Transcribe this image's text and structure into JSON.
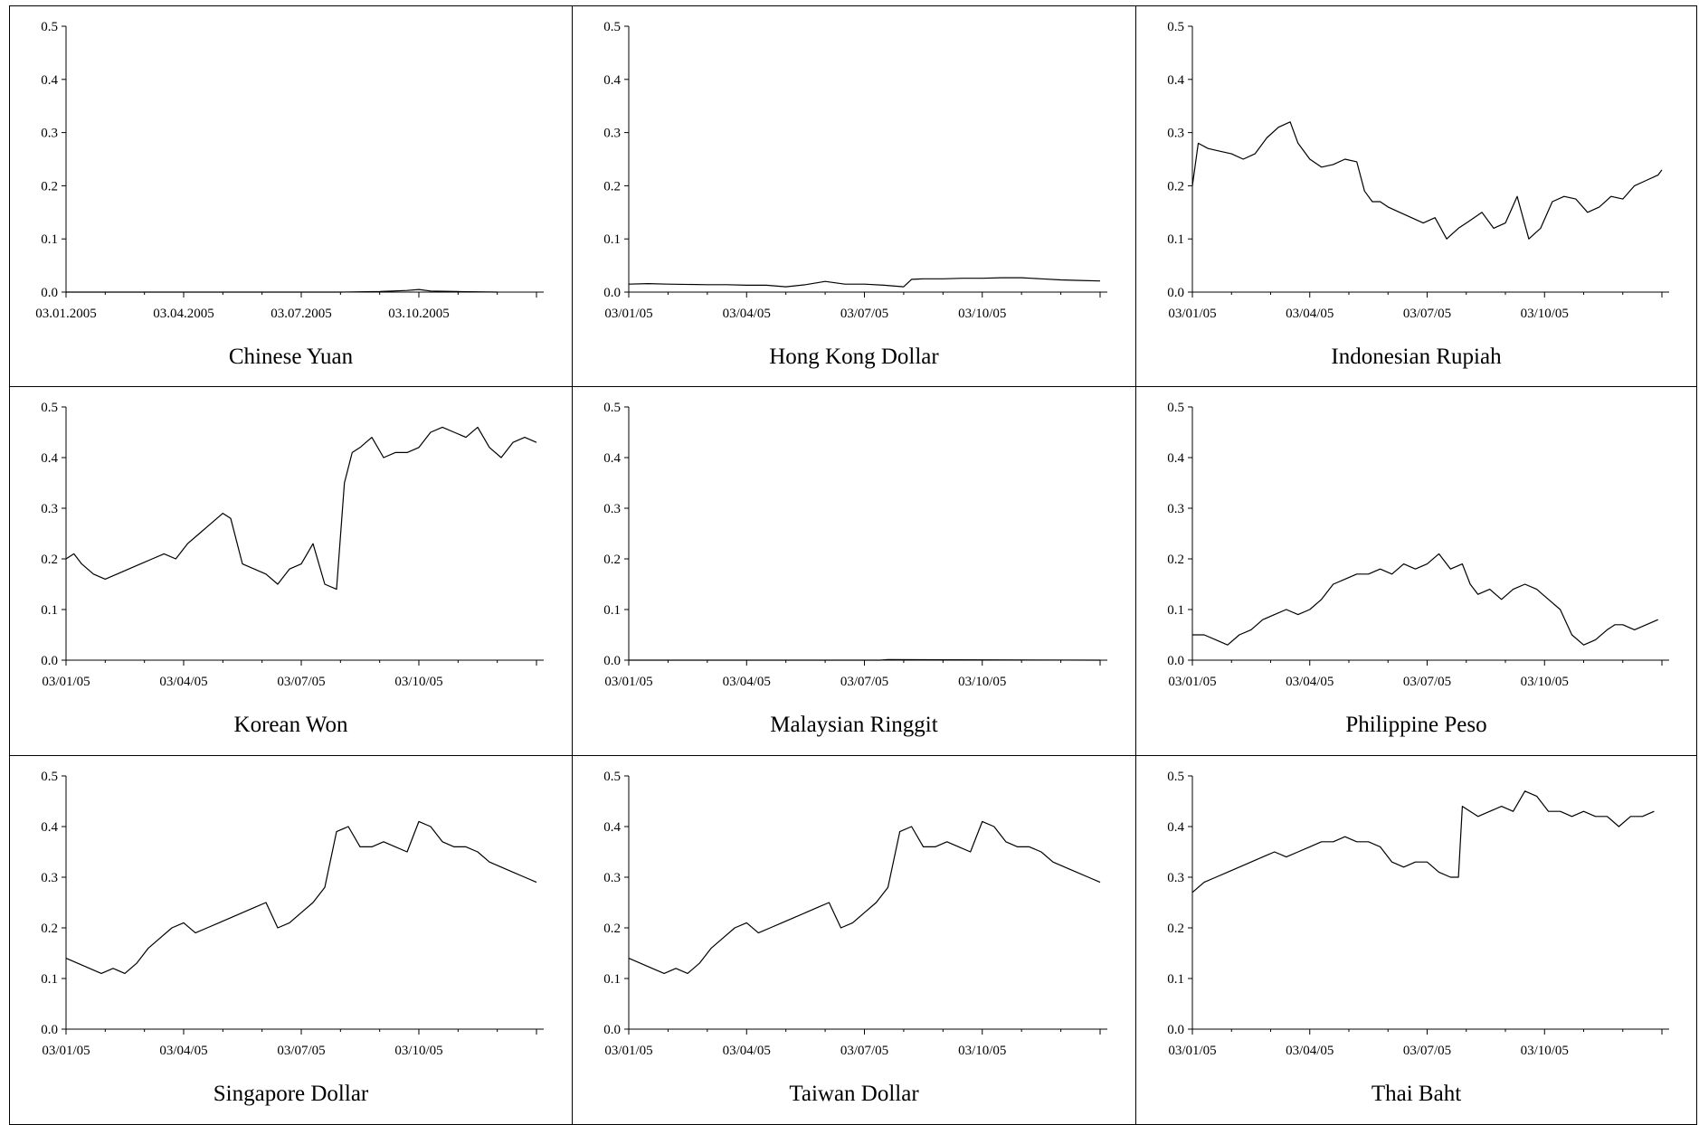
{
  "header": {
    "caption_fragment": ""
  },
  "chart_data": [
    {
      "type": "line",
      "title": "Chinese Yuan",
      "ylim": [
        0,
        0.5
      ],
      "yticks": [
        "0.0",
        "0.1",
        "0.2",
        "0.3",
        "0.4",
        "0.5"
      ],
      "xticks": [
        "03.01.2005",
        "03.04.2005",
        "03.07.2005",
        "03.10.2005"
      ],
      "xdomain": [
        0,
        12
      ],
      "series": [
        {
          "x": [
            0,
            1,
            2,
            3,
            4,
            5,
            6,
            7,
            8,
            8.7,
            9.0,
            9.3,
            10,
            11
          ],
          "y": [
            0,
            0,
            0,
            0,
            0,
            0,
            0,
            0,
            0.001,
            0.003,
            0.005,
            0.002,
            0.001,
            0
          ]
        }
      ]
    },
    {
      "type": "line",
      "title": "Hong Kong Dollar",
      "ylim": [
        0,
        0.5
      ],
      "yticks": [
        "0.0",
        "0.1",
        "0.2",
        "0.3",
        "0.4",
        "0.5"
      ],
      "xticks": [
        "03/01/05",
        "03/04/05",
        "03/07/05",
        "03/10/05"
      ],
      "xdomain": [
        0,
        12
      ],
      "series": [
        {
          "x": [
            0,
            0.5,
            1,
            2,
            2.5,
            3,
            3.5,
            4,
            4.5,
            5,
            5.5,
            6,
            6.5,
            7,
            7.2,
            7.5,
            8,
            8.5,
            9,
            9.5,
            10,
            10.5,
            11,
            11.5,
            12
          ],
          "y": [
            0.015,
            0.016,
            0.015,
            0.014,
            0.014,
            0.013,
            0.013,
            0.01,
            0.014,
            0.02,
            0.015,
            0.015,
            0.013,
            0.01,
            0.024,
            0.025,
            0.025,
            0.026,
            0.026,
            0.027,
            0.027,
            0.025,
            0.023,
            0.022,
            0.021
          ]
        }
      ]
    },
    {
      "type": "line",
      "title": "Indonesian Rupiah",
      "ylim": [
        0,
        0.5
      ],
      "yticks": [
        "0.0",
        "0.1",
        "0.2",
        "0.3",
        "0.4",
        "0.5"
      ],
      "xticks": [
        "03/01/05",
        "03/04/05",
        "03/07/05",
        "03/10/05"
      ],
      "xdomain": [
        0,
        12
      ],
      "series": [
        {
          "x": [
            0,
            0.15,
            0.4,
            0.7,
            1.0,
            1.3,
            1.6,
            1.9,
            2.2,
            2.5,
            2.7,
            3.0,
            3.3,
            3.6,
            3.9,
            4.2,
            4.4,
            4.6,
            4.8,
            5.0,
            5.3,
            5.6,
            5.9,
            6.2,
            6.5,
            6.8,
            7.0,
            7.2,
            7.4,
            7.7,
            8.0,
            8.3,
            8.6,
            8.9,
            9.2,
            9.5,
            9.8,
            10.1,
            10.4,
            10.7,
            11.0,
            11.3,
            11.6,
            11.9,
            12.0
          ],
          "y": [
            0.2,
            0.28,
            0.27,
            0.265,
            0.26,
            0.25,
            0.26,
            0.29,
            0.31,
            0.32,
            0.28,
            0.25,
            0.235,
            0.24,
            0.25,
            0.245,
            0.19,
            0.17,
            0.17,
            0.16,
            0.15,
            0.14,
            0.13,
            0.14,
            0.1,
            0.12,
            0.13,
            0.14,
            0.15,
            0.12,
            0.13,
            0.18,
            0.1,
            0.12,
            0.17,
            0.18,
            0.175,
            0.15,
            0.16,
            0.18,
            0.175,
            0.2,
            0.21,
            0.22,
            0.23
          ]
        }
      ]
    },
    {
      "type": "line",
      "title": "Korean Won",
      "ylim": [
        0,
        0.5
      ],
      "yticks": [
        "0.0",
        "0.1",
        "0.2",
        "0.3",
        "0.4",
        "0.5"
      ],
      "xticks": [
        "03/01/05",
        "03/04/05",
        "03/07/05",
        "03/10/05"
      ],
      "xdomain": [
        0,
        12
      ],
      "series": [
        {
          "x": [
            0,
            0.2,
            0.4,
            0.7,
            1.0,
            1.3,
            1.6,
            1.9,
            2.2,
            2.5,
            2.8,
            3.1,
            3.4,
            3.7,
            4.0,
            4.2,
            4.5,
            4.8,
            5.1,
            5.4,
            5.7,
            6.0,
            6.3,
            6.6,
            6.9,
            7.1,
            7.3,
            7.5,
            7.8,
            8.1,
            8.4,
            8.7,
            9.0,
            9.3,
            9.6,
            9.9,
            10.2,
            10.5,
            10.8,
            11.1,
            11.4,
            11.7,
            12.0
          ],
          "y": [
            0.2,
            0.21,
            0.19,
            0.17,
            0.16,
            0.17,
            0.18,
            0.19,
            0.2,
            0.21,
            0.2,
            0.23,
            0.25,
            0.27,
            0.29,
            0.28,
            0.19,
            0.18,
            0.17,
            0.15,
            0.18,
            0.19,
            0.23,
            0.15,
            0.14,
            0.35,
            0.41,
            0.42,
            0.44,
            0.4,
            0.41,
            0.41,
            0.42,
            0.45,
            0.46,
            0.45,
            0.44,
            0.46,
            0.42,
            0.4,
            0.43,
            0.44,
            0.43
          ]
        }
      ]
    },
    {
      "type": "line",
      "title": "Malaysian Ringgit",
      "ylim": [
        0,
        0.5
      ],
      "yticks": [
        "0.0",
        "0.1",
        "0.2",
        "0.3",
        "0.4",
        "0.5"
      ],
      "xticks": [
        "03/01/05",
        "03/04/05",
        "03/07/05",
        "03/10/05"
      ],
      "xdomain": [
        0,
        12
      ],
      "series": [
        {
          "x": [
            0,
            6.4,
            6.6,
            12
          ],
          "y": [
            0,
            0,
            0.001,
            0
          ]
        }
      ]
    },
    {
      "type": "line",
      "title": "Philippine Peso",
      "ylim": [
        0,
        0.5
      ],
      "yticks": [
        "0.0",
        "0.1",
        "0.2",
        "0.3",
        "0.4",
        "0.5"
      ],
      "xticks": [
        "03/01/05",
        "03/04/05",
        "03/07/05",
        "03/10/05"
      ],
      "xdomain": [
        0,
        12
      ],
      "series": [
        {
          "x": [
            0,
            0.3,
            0.6,
            0.9,
            1.2,
            1.5,
            1.8,
            2.1,
            2.4,
            2.7,
            3.0,
            3.3,
            3.6,
            3.9,
            4.2,
            4.5,
            4.8,
            5.1,
            5.4,
            5.7,
            6.0,
            6.3,
            6.6,
            6.9,
            7.1,
            7.3,
            7.6,
            7.9,
            8.2,
            8.5,
            8.8,
            9.1,
            9.4,
            9.7,
            10.0,
            10.3,
            10.6,
            10.8,
            11.0,
            11.3,
            11.6,
            11.9
          ],
          "y": [
            0.05,
            0.05,
            0.04,
            0.03,
            0.05,
            0.06,
            0.08,
            0.09,
            0.1,
            0.09,
            0.1,
            0.12,
            0.15,
            0.16,
            0.17,
            0.17,
            0.18,
            0.17,
            0.19,
            0.18,
            0.19,
            0.21,
            0.18,
            0.19,
            0.15,
            0.13,
            0.14,
            0.12,
            0.14,
            0.15,
            0.14,
            0.12,
            0.1,
            0.05,
            0.03,
            0.04,
            0.06,
            0.07,
            0.07,
            0.06,
            0.07,
            0.08
          ]
        }
      ]
    },
    {
      "type": "line",
      "title": "Singapore Dollar",
      "ylim": [
        0,
        0.5
      ],
      "yticks": [
        "0.0",
        "0.1",
        "0.2",
        "0.3",
        "0.4",
        "0.5"
      ],
      "xticks": [
        "03/01/05",
        "03/04/05",
        "03/07/05",
        "03/10/05"
      ],
      "xdomain": [
        0,
        12
      ],
      "series": [
        {
          "x": [
            0,
            0.3,
            0.6,
            0.9,
            1.2,
            1.5,
            1.8,
            2.1,
            2.4,
            2.7,
            3.0,
            3.3,
            3.6,
            3.9,
            4.2,
            4.5,
            4.8,
            5.1,
            5.4,
            5.7,
            6.0,
            6.3,
            6.6,
            6.9,
            7.2,
            7.5,
            7.8,
            8.1,
            8.4,
            8.7,
            9.0,
            9.3,
            9.6,
            9.9,
            10.2,
            10.5,
            10.8,
            11.1,
            11.4,
            11.7,
            12.0
          ],
          "y": [
            0.14,
            0.13,
            0.12,
            0.11,
            0.12,
            0.11,
            0.13,
            0.16,
            0.18,
            0.2,
            0.21,
            0.19,
            0.2,
            0.21,
            0.22,
            0.23,
            0.24,
            0.25,
            0.2,
            0.21,
            0.23,
            0.25,
            0.28,
            0.39,
            0.4,
            0.36,
            0.36,
            0.37,
            0.36,
            0.35,
            0.41,
            0.4,
            0.37,
            0.36,
            0.36,
            0.35,
            0.33,
            0.32,
            0.31,
            0.3,
            0.29
          ]
        }
      ]
    },
    {
      "type": "line",
      "title": "Taiwan Dollar",
      "ylim": [
        0,
        0.5
      ],
      "yticks": [
        "0.0",
        "0.1",
        "0.2",
        "0.3",
        "0.4",
        "0.5"
      ],
      "xticks": [
        "03/01/05",
        "03/04/05",
        "03/07/05",
        "03/10/05"
      ],
      "xdomain": [
        0,
        12
      ],
      "series": [
        {
          "x": [
            0,
            0.3,
            0.6,
            0.9,
            1.2,
            1.5,
            1.8,
            2.1,
            2.4,
            2.7,
            3.0,
            3.3,
            3.6,
            3.9,
            4.2,
            4.5,
            4.8,
            5.1,
            5.4,
            5.7,
            6.0,
            6.3,
            6.6,
            6.9,
            7.2,
            7.5,
            7.8,
            8.1,
            8.4,
            8.7,
            9.0,
            9.3,
            9.6,
            9.9,
            10.2,
            10.5,
            10.8,
            11.1,
            11.4,
            11.7,
            12.0
          ],
          "y": [
            0.14,
            0.13,
            0.12,
            0.11,
            0.12,
            0.11,
            0.13,
            0.16,
            0.18,
            0.2,
            0.21,
            0.19,
            0.2,
            0.21,
            0.22,
            0.23,
            0.24,
            0.25,
            0.2,
            0.21,
            0.23,
            0.25,
            0.28,
            0.39,
            0.4,
            0.36,
            0.36,
            0.37,
            0.36,
            0.35,
            0.41,
            0.4,
            0.37,
            0.36,
            0.36,
            0.35,
            0.33,
            0.32,
            0.31,
            0.3,
            0.29
          ]
        }
      ]
    },
    {
      "type": "line",
      "title": "Thai Baht",
      "ylim": [
        0,
        0.5
      ],
      "yticks": [
        "0.0",
        "0.1",
        "0.2",
        "0.3",
        "0.4",
        "0.5"
      ],
      "xticks": [
        "03/01/05",
        "03/04/05",
        "03/07/05",
        "03/10/05"
      ],
      "xdomain": [
        0,
        12
      ],
      "series": [
        {
          "x": [
            0,
            0.3,
            0.6,
            0.9,
            1.2,
            1.5,
            1.8,
            2.1,
            2.4,
            2.7,
            3.0,
            3.3,
            3.6,
            3.9,
            4.2,
            4.5,
            4.8,
            5.1,
            5.4,
            5.7,
            6.0,
            6.3,
            6.6,
            6.8,
            6.9,
            7.1,
            7.3,
            7.6,
            7.9,
            8.2,
            8.5,
            8.8,
            9.1,
            9.4,
            9.7,
            10.0,
            10.3,
            10.6,
            10.9,
            11.2,
            11.5,
            11.8
          ],
          "y": [
            0.27,
            0.29,
            0.3,
            0.31,
            0.32,
            0.33,
            0.34,
            0.35,
            0.34,
            0.35,
            0.36,
            0.37,
            0.37,
            0.38,
            0.37,
            0.37,
            0.36,
            0.33,
            0.32,
            0.33,
            0.33,
            0.31,
            0.3,
            0.3,
            0.44,
            0.43,
            0.42,
            0.43,
            0.44,
            0.43,
            0.47,
            0.46,
            0.43,
            0.43,
            0.42,
            0.43,
            0.42,
            0.42,
            0.4,
            0.42,
            0.42,
            0.43
          ]
        }
      ]
    }
  ]
}
